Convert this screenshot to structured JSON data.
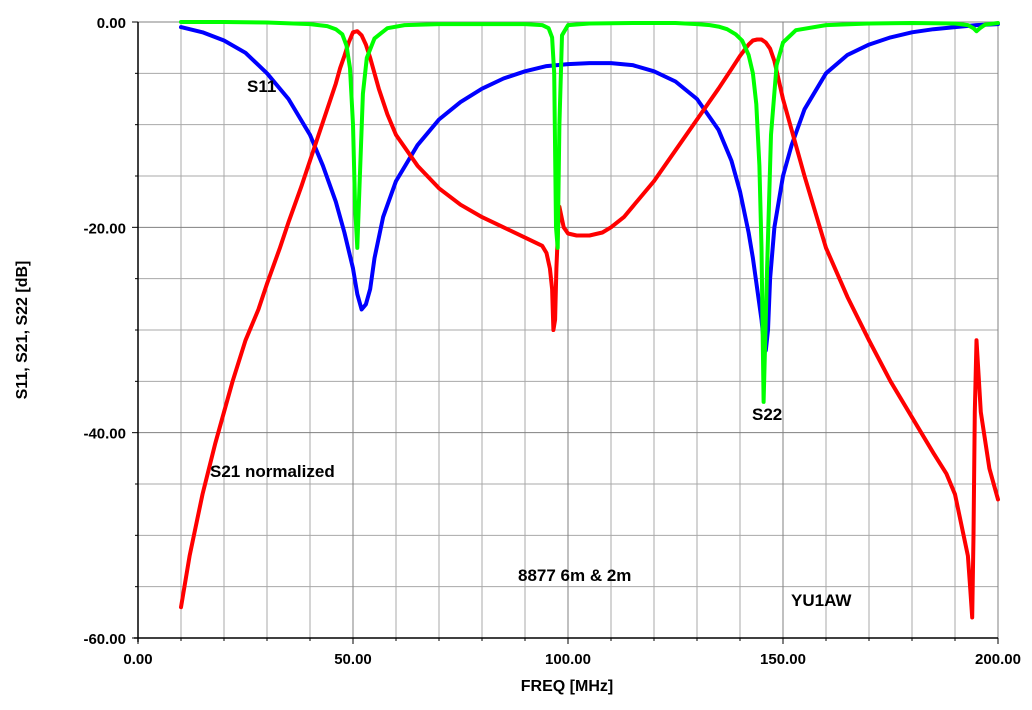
{
  "chart_data": {
    "type": "line",
    "xlabel": "FREQ [MHz]",
    "ylabel": "S11, S21, S22 [dB]",
    "xlim": [
      0,
      200
    ],
    "ylim": [
      -60,
      0
    ],
    "x_ticks": [
      "0.00",
      "50.00",
      "100.00",
      "150.00",
      "200.00"
    ],
    "y_ticks": [
      "0.00",
      "-20.00",
      "-40.00",
      "-60.00"
    ],
    "grid": true,
    "annotations": {
      "s11": "S11",
      "s21": "S21 normalized",
      "s22": "S22",
      "title": "8877 6m & 2m",
      "author": "YU1AW"
    },
    "colors": {
      "S11": "#0000ff",
      "S21": "#ff0000",
      "S22": "#00ff00",
      "grid": "#a8a8a8",
      "axes": "#000000"
    },
    "series": [
      {
        "name": "S11",
        "x": [
          10,
          15,
          20,
          25,
          30,
          35,
          40,
          43,
          46,
          48,
          50,
          51,
          52,
          53,
          54,
          55,
          57,
          60,
          65,
          70,
          75,
          80,
          85,
          90,
          95,
          100,
          105,
          110,
          115,
          120,
          125,
          130,
          135,
          138,
          140,
          142,
          143,
          144,
          145,
          145.5,
          146,
          146.5,
          147,
          148,
          150,
          152,
          155,
          160,
          165,
          170,
          175,
          180,
          185,
          190,
          195,
          200
        ],
        "y": [
          -0.5,
          -1,
          -1.8,
          -3,
          -5,
          -7.5,
          -11,
          -14,
          -17.5,
          -20.5,
          -24,
          -26.5,
          -28,
          -27.5,
          -26,
          -23,
          -19,
          -15.5,
          -12,
          -9.5,
          -7.8,
          -6.5,
          -5.5,
          -4.8,
          -4.3,
          -4.1,
          -4,
          -4,
          -4.2,
          -4.8,
          -5.8,
          -7.5,
          -10.5,
          -13.5,
          -16.5,
          -20.5,
          -23,
          -26,
          -29,
          -31,
          -32,
          -30,
          -25,
          -20,
          -15,
          -12,
          -8.5,
          -5,
          -3.2,
          -2.2,
          -1.5,
          -1,
          -0.7,
          -0.5,
          -0.3,
          -0.2
        ]
      },
      {
        "name": "S21 normalized",
        "x": [
          10,
          12,
          15,
          18,
          20,
          22,
          25,
          28,
          30,
          33,
          35,
          38,
          40,
          42,
          44,
          46,
          47,
          48,
          49,
          50,
          51,
          52,
          53,
          54,
          56,
          58,
          60,
          65,
          70,
          75,
          80,
          85,
          90,
          94,
          95,
          95.8,
          96.3,
          96.6,
          97,
          97.3,
          97.7,
          98,
          99,
          100,
          102,
          105,
          108,
          110,
          113,
          115,
          120,
          125,
          130,
          135,
          138,
          140,
          142,
          143,
          144,
          145,
          146,
          147,
          148,
          150,
          152,
          155,
          160,
          165,
          170,
          175,
          180,
          185,
          188,
          190,
          191,
          192,
          193,
          193.5,
          194,
          194.3,
          194.6,
          195,
          196,
          198,
          200
        ],
        "y": [
          -57,
          -52,
          -46,
          -41,
          -38,
          -35,
          -31,
          -28,
          -25.5,
          -22,
          -19.5,
          -16,
          -13.5,
          -11,
          -8.5,
          -6,
          -4.5,
          -3.3,
          -2,
          -1,
          -0.9,
          -1.3,
          -2.2,
          -3.5,
          -6.5,
          -9,
          -11,
          -14,
          -16.2,
          -17.8,
          -19,
          -20,
          -21,
          -21.8,
          -22.5,
          -24,
          -26,
          -30,
          -29,
          -24,
          -20,
          -18,
          -20,
          -20.6,
          -20.8,
          -20.8,
          -20.5,
          -20,
          -19,
          -18,
          -15.5,
          -12.5,
          -9.5,
          -6.5,
          -4.6,
          -3.3,
          -2.2,
          -1.8,
          -1.7,
          -1.7,
          -2,
          -2.6,
          -3.8,
          -7.5,
          -10.5,
          -15,
          -22,
          -26.8,
          -31,
          -35,
          -38.5,
          -42,
          -44,
          -46,
          -48,
          -50,
          -52,
          -55,
          -58,
          -50,
          -38,
          -31,
          -38,
          -43.5,
          -46.5
        ]
      },
      {
        "name": "S22",
        "x": [
          10,
          20,
          30,
          40,
          44,
          46,
          47.5,
          48.5,
          49.3,
          50,
          50.5,
          51,
          51.5,
          52.3,
          53.2,
          55,
          58,
          62,
          70,
          80,
          90,
          94,
          95.5,
          96.3,
          96.8,
          97.2,
          97.6,
          98,
          98.6,
          100,
          105,
          115,
          125,
          130,
          133,
          135,
          137,
          139,
          140.5,
          142,
          143,
          143.8,
          144.5,
          145,
          145.5,
          146.3,
          147.2,
          148.5,
          150,
          153,
          160,
          170,
          180,
          190,
          193,
          194.3,
          195,
          195.8,
          197,
          200
        ],
        "y": [
          0,
          0,
          -0.05,
          -0.2,
          -0.4,
          -0.7,
          -1.2,
          -2.3,
          -4.5,
          -10,
          -18,
          -22,
          -16,
          -7,
          -3.5,
          -1.6,
          -0.6,
          -0.3,
          -0.2,
          -0.2,
          -0.2,
          -0.3,
          -0.6,
          -1.5,
          -5,
          -20,
          -22,
          -10,
          -1.3,
          -0.3,
          -0.15,
          -0.1,
          -0.1,
          -0.2,
          -0.3,
          -0.45,
          -0.7,
          -1.2,
          -1.8,
          -3.2,
          -5,
          -8,
          -14,
          -22,
          -37,
          -24,
          -11,
          -4.2,
          -2,
          -0.8,
          -0.3,
          -0.15,
          -0.1,
          -0.15,
          -0.3,
          -0.6,
          -0.9,
          -0.6,
          -0.25,
          -0.1
        ]
      }
    ]
  }
}
